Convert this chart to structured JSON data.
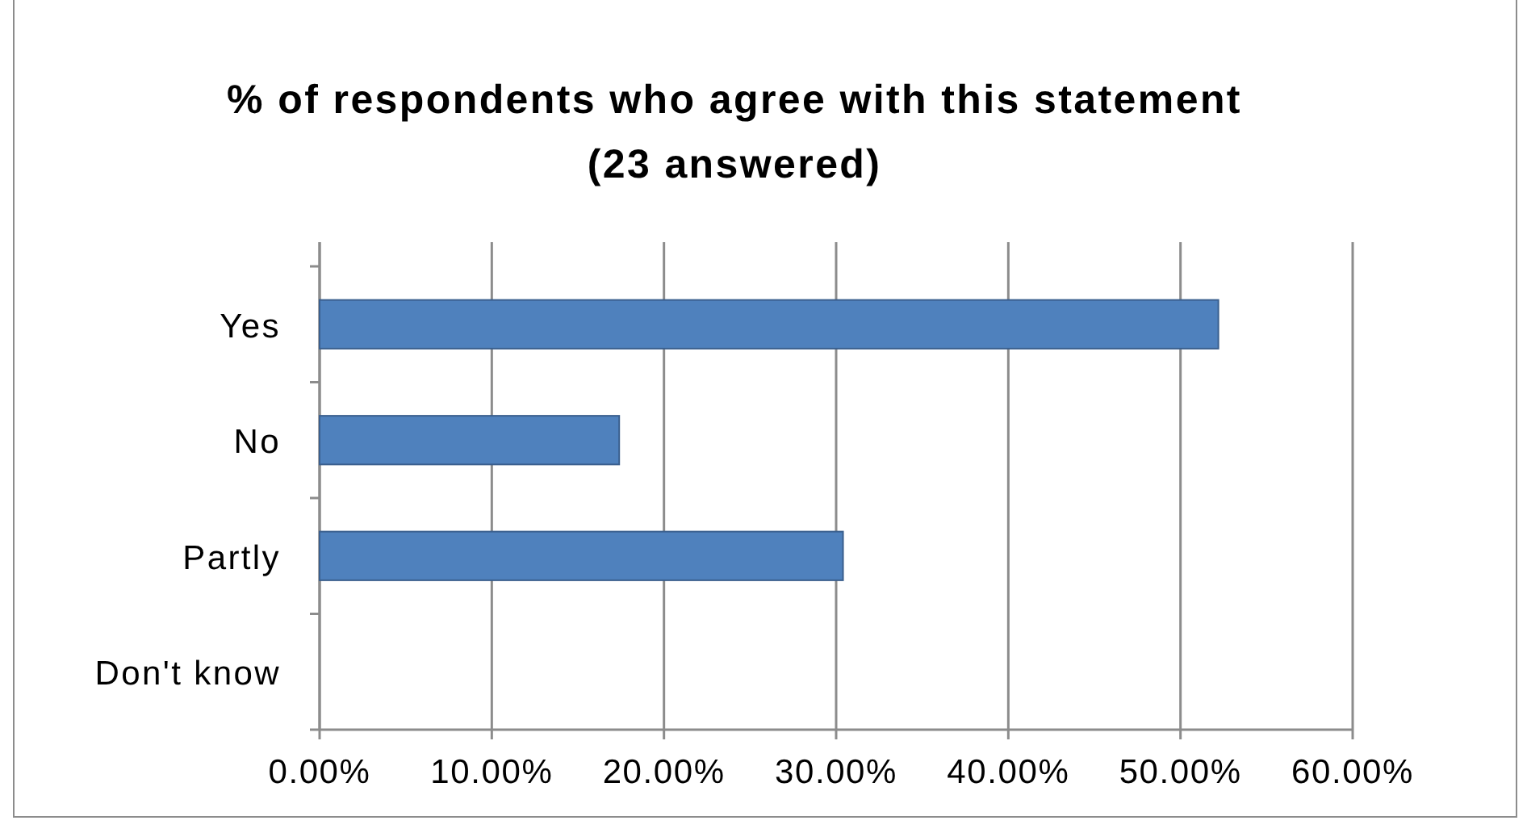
{
  "chart_data": {
    "type": "bar",
    "orientation": "horizontal",
    "title": "% of respondents who agree with this statement\n(23 answered)",
    "categories": [
      "Yes",
      "No",
      "Partly",
      "Don't know"
    ],
    "series": [
      {
        "color": "#4f81bd",
        "values": [
          52.2,
          17.4,
          30.4,
          0
        ]
      }
    ],
    "xlim": [
      0,
      60
    ],
    "xticks": [
      {
        "value": 0,
        "label": "0.00%"
      },
      {
        "value": 10,
        "label": "10.00%"
      },
      {
        "value": 20,
        "label": "20.00%"
      },
      {
        "value": 30,
        "label": "30.00%"
      },
      {
        "value": 40,
        "label": "40.00%"
      },
      {
        "value": 50,
        "label": "50.00%"
      },
      {
        "value": 60,
        "label": "60.00%"
      }
    ],
    "grid": "x"
  }
}
